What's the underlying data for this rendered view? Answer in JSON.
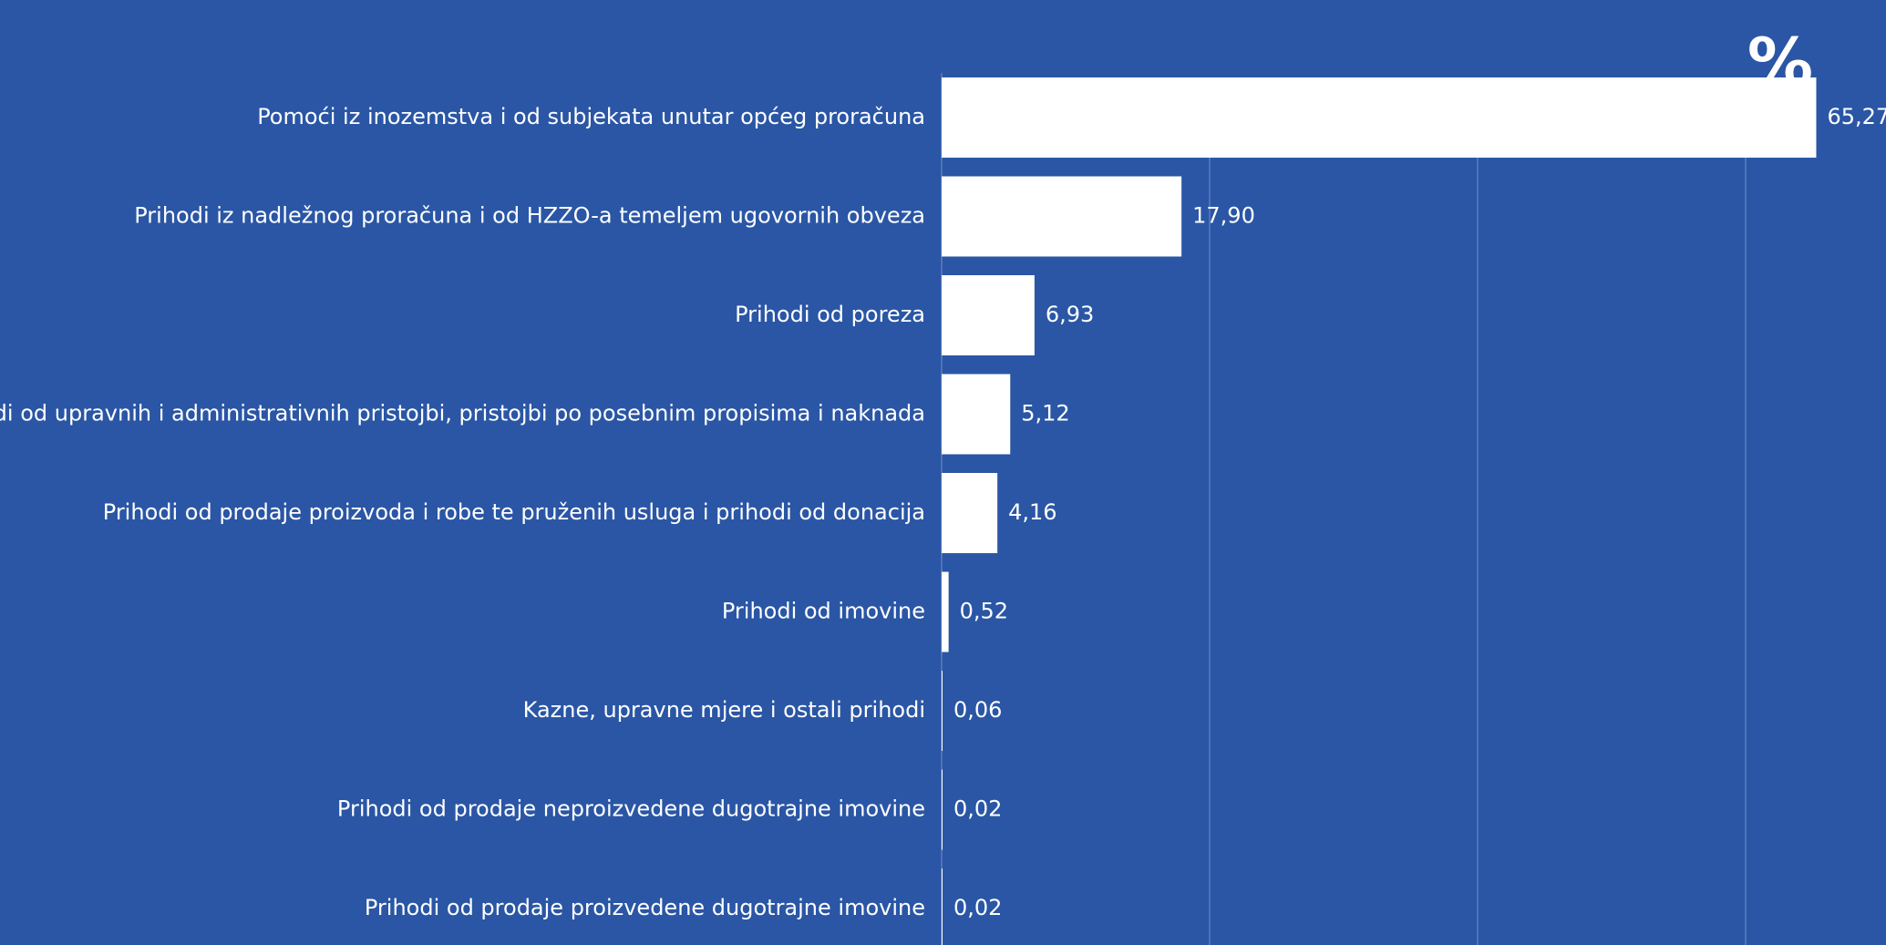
{
  "chart_data": {
    "type": "bar",
    "orientation": "horizontal",
    "unit_label": "%",
    "categories": [
      "Pomoći iz inozemstva i od subjekata unutar općeg proračuna",
      "Prihodi iz nadležnog proračuna i od HZZO-a temeljem ugovornih obveza",
      "Prihodi od poreza",
      "Prihodi od upravnih i administrativnih pristojbi, pristojbi po posebnim propisima i naknada",
      "Prihodi od prodaje proizvoda i robe te pruženih usluga i prihodi od donacija",
      "Prihodi od imovine",
      "Kazne, upravne mjere i ostali prihodi",
      "Prihodi od prodaje neproizvedene dugotrajne imovine",
      "Prihodi od prodaje proizvedene dugotrajne imovine"
    ],
    "values": [
      65.27,
      17.9,
      6.93,
      5.12,
      4.16,
      0.52,
      0.06,
      0.02,
      0.02
    ],
    "value_labels": [
      "65,27",
      "17,90",
      "6,93",
      "5,12",
      "4,16",
      "0,52",
      "0,06",
      "0,02",
      "0,02"
    ],
    "xlim": [
      0,
      70
    ],
    "gridlines_at": [
      20,
      40,
      60
    ],
    "grid": true,
    "colors": {
      "background": "#2a56a5",
      "bar": "#ffffff",
      "text": "#ffffff",
      "gridline": "#5a7fc0"
    }
  }
}
